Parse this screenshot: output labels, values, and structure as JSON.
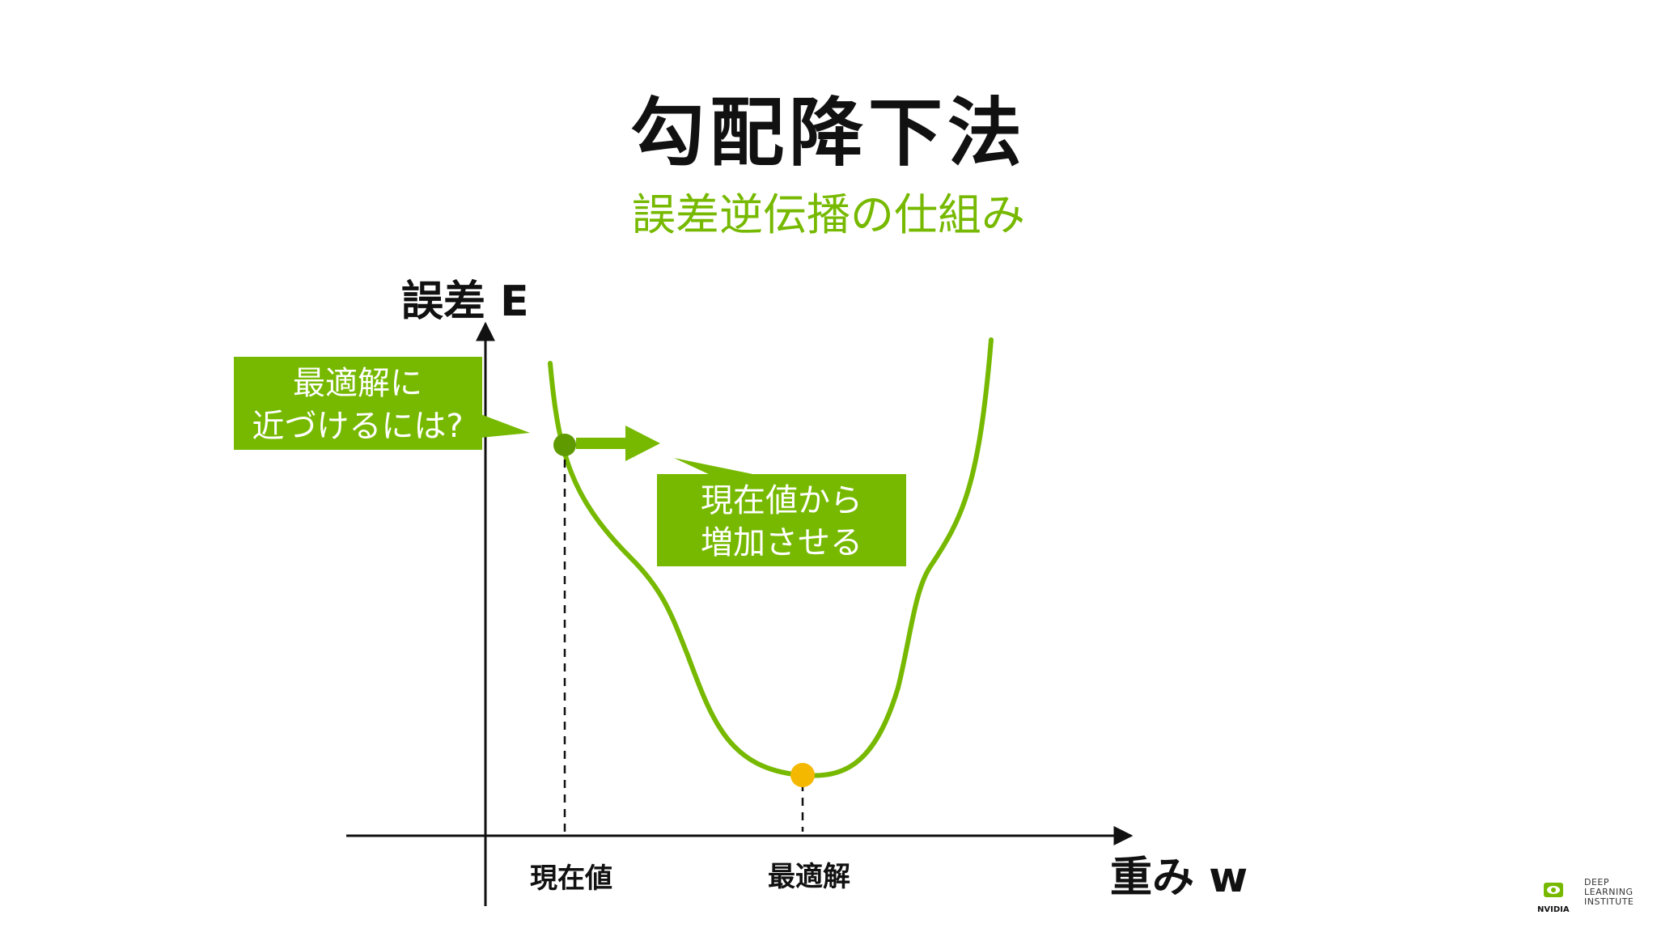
{
  "title": "勾配降下法",
  "subtitle": "誤差逆伝播の仕組み",
  "diagram": {
    "y_axis_label": "誤差 E",
    "x_axis_label": "重み w",
    "x_tick_current": "現在値",
    "x_tick_optimal": "最適解",
    "callout_left": {
      "line1": "最適解に",
      "line2": "近づけるには?"
    },
    "callout_right": {
      "line1": "現在値から",
      "line2": "増加させる"
    },
    "colors": {
      "curve": "#76b900",
      "callout_bg": "#76b900",
      "optimum_point": "#f5b800",
      "current_point": "#5e9a00",
      "axis": "#111111"
    }
  },
  "logo": {
    "brand": "NVIDIA",
    "line1": "DEEP",
    "line2": "LEARNING",
    "line3": "INSTITUTE"
  }
}
